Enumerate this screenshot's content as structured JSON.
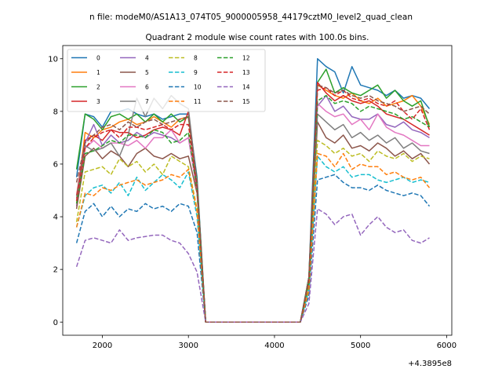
{
  "figure": {
    "suptitle": "n file: modeM0/AS1A13_074T05_9000005958_44179cztM0_level2_quad_clean",
    "title": "Quadrant 2 module wise count rates with 100.0s bins.",
    "x_offset_label": "+4.3895e8"
  },
  "chart_data": {
    "type": "line",
    "title": "Quadrant 2 module wise count rates with 100.0s bins.",
    "xlabel": "",
    "ylabel": "",
    "x_offset": 438950000,
    "xlim": [
      1540,
      6060
    ],
    "ylim": [
      -0.5,
      10.5
    ],
    "xticks": [
      2000,
      3000,
      4000,
      5000,
      6000
    ],
    "yticks": [
      0,
      2,
      4,
      6,
      8,
      10
    ],
    "grid": false,
    "legend": {
      "position": "upper-left",
      "columns": 4
    },
    "x": [
      1700,
      1800,
      1900,
      2000,
      2100,
      2200,
      2300,
      2400,
      2500,
      2600,
      2700,
      2800,
      2900,
      3000,
      3100,
      3200,
      3300,
      3400,
      3500,
      3600,
      3700,
      3800,
      3900,
      4000,
      4100,
      4200,
      4300,
      4400,
      4500,
      4600,
      4700,
      4800,
      4900,
      5000,
      5100,
      5200,
      5300,
      5400,
      5500,
      5600,
      5700,
      5800
    ],
    "series": [
      {
        "name": "0",
        "color": "#1f77b4",
        "dash": "solid",
        "values": [
          5.5,
          7.9,
          7.8,
          7.4,
          8.0,
          8.0,
          8.1,
          7.9,
          7.8,
          7.9,
          7.7,
          7.8,
          7.9,
          7.9,
          5.5,
          0,
          0,
          0,
          0,
          0,
          0,
          0,
          0,
          0,
          0,
          0,
          0,
          1.7,
          10.0,
          9.7,
          9.5,
          8.7,
          9.7,
          9.0,
          8.9,
          8.8,
          8.6,
          8.8,
          8.5,
          8.6,
          8.5,
          8.1
        ]
      },
      {
        "name": "1",
        "color": "#ff7f0e",
        "dash": "solid",
        "values": [
          4.5,
          7.2,
          7.0,
          7.3,
          7.4,
          7.6,
          7.7,
          7.5,
          7.6,
          7.8,
          7.6,
          7.4,
          7.7,
          7.8,
          5.2,
          0,
          0,
          0,
          0,
          0,
          0,
          0,
          0,
          0,
          0,
          0,
          0,
          1.6,
          9.0,
          8.8,
          8.6,
          8.5,
          8.7,
          8.4,
          8.3,
          8.5,
          8.2,
          8.3,
          8.4,
          8.6,
          8.2,
          7.5
        ]
      },
      {
        "name": "2",
        "color": "#2ca02c",
        "dash": "solid",
        "values": [
          5.8,
          7.9,
          7.7,
          7.3,
          7.8,
          7.9,
          7.7,
          7.9,
          7.6,
          7.9,
          7.6,
          7.9,
          7.6,
          7.8,
          5.4,
          0,
          0,
          0,
          0,
          0,
          0,
          0,
          0,
          0,
          0,
          0,
          0,
          1.7,
          9.1,
          9.6,
          8.7,
          8.9,
          8.7,
          8.6,
          8.8,
          9.0,
          8.5,
          8.8,
          8.4,
          8.2,
          8.4,
          7.4
        ]
      },
      {
        "name": "3",
        "color": "#d62728",
        "dash": "solid",
        "values": [
          4.8,
          6.9,
          7.1,
          6.9,
          7.3,
          7.2,
          7.2,
          7.0,
          7.1,
          7.3,
          7.4,
          7.3,
          7.1,
          8.0,
          5.1,
          0,
          0,
          0,
          0,
          0,
          0,
          0,
          0,
          0,
          0,
          0,
          0,
          1.6,
          9.1,
          8.7,
          8.4,
          8.6,
          8.4,
          8.3,
          8.4,
          8.2,
          7.9,
          7.8,
          7.7,
          7.5,
          7.3,
          7.1
        ]
      },
      {
        "name": "4",
        "color": "#9467bd",
        "dash": "solid",
        "values": [
          4.4,
          6.8,
          7.5,
          6.7,
          7.1,
          6.8,
          6.9,
          7.2,
          7.0,
          7.2,
          7.1,
          7.0,
          6.8,
          7.0,
          5.0,
          0,
          0,
          0,
          0,
          0,
          0,
          0,
          0,
          0,
          0,
          0,
          0,
          1.6,
          8.2,
          8.6,
          8.0,
          8.2,
          7.8,
          7.7,
          7.7,
          7.9,
          7.5,
          7.4,
          7.6,
          7.3,
          7.2,
          7.0
        ]
      },
      {
        "name": "5",
        "color": "#8c564b",
        "dash": "solid",
        "values": [
          4.3,
          6.3,
          6.6,
          6.2,
          6.5,
          6.3,
          5.9,
          6.4,
          6.6,
          6.3,
          6.2,
          6.4,
          6.2,
          6.3,
          4.9,
          0,
          0,
          0,
          0,
          0,
          0,
          0,
          0,
          0,
          0,
          0,
          0,
          1.5,
          7.6,
          7.0,
          6.8,
          7.1,
          6.6,
          6.7,
          6.5,
          6.8,
          6.6,
          6.3,
          6.5,
          6.2,
          6.4,
          6.0
        ]
      },
      {
        "name": "6",
        "color": "#e377c2",
        "dash": "solid",
        "values": [
          4.6,
          6.6,
          6.9,
          6.6,
          6.8,
          6.8,
          6.7,
          6.9,
          6.6,
          7.0,
          7.0,
          7.3,
          6.8,
          7.0,
          5.0,
          0,
          0,
          0,
          0,
          0,
          0,
          0,
          0,
          0,
          0,
          0,
          0,
          1.6,
          8.3,
          8.0,
          7.8,
          7.9,
          7.5,
          7.7,
          7.3,
          7.9,
          7.4,
          7.2,
          7.1,
          6.9,
          6.7,
          6.7
        ]
      },
      {
        "name": "7",
        "color": "#7f7f7f",
        "dash": "solid",
        "values": [
          4.7,
          6.7,
          6.5,
          6.6,
          6.8,
          6.3,
          7.1,
          8.5,
          7.8,
          8.5,
          8.1,
          8.6,
          8.3,
          8.1,
          5.3,
          0,
          0,
          0,
          0,
          0,
          0,
          0,
          0,
          0,
          0,
          0,
          0,
          1.6,
          7.9,
          7.6,
          7.3,
          7.5,
          7.0,
          7.2,
          6.9,
          7.1,
          6.8,
          7.0,
          6.6,
          6.8,
          6.5,
          6.4
        ]
      },
      {
        "name": "8",
        "color": "#bcbd22",
        "dash": "dashed",
        "values": [
          3.8,
          5.7,
          5.8,
          5.9,
          5.6,
          6.2,
          5.9,
          6.1,
          5.7,
          6.0,
          5.6,
          6.3,
          6.1,
          5.9,
          4.3,
          0,
          0,
          0,
          0,
          0,
          0,
          0,
          0,
          0,
          0,
          0,
          0,
          1.3,
          6.9,
          6.7,
          6.4,
          6.6,
          6.3,
          6.4,
          6.1,
          6.5,
          6.3,
          6.2,
          6.4,
          6.1,
          6.3,
          6.2
        ]
      },
      {
        "name": "9",
        "color": "#17becf",
        "dash": "dashed",
        "values": [
          3.6,
          4.8,
          5.1,
          5.2,
          4.9,
          5.3,
          4.8,
          5.5,
          5.0,
          5.3,
          5.6,
          5.4,
          5.1,
          5.7,
          4.0,
          0,
          0,
          0,
          0,
          0,
          0,
          0,
          0,
          0,
          0,
          0,
          0,
          1.2,
          6.3,
          5.9,
          5.7,
          5.9,
          5.5,
          5.6,
          5.6,
          5.4,
          5.3,
          5.4,
          5.5,
          5.3,
          5.4,
          5.3
        ]
      },
      {
        "name": "10",
        "color": "#1f77b4",
        "dash": "dashed",
        "values": [
          3.0,
          4.2,
          4.5,
          4.0,
          4.4,
          4.0,
          4.3,
          4.2,
          4.5,
          4.3,
          4.4,
          4.2,
          4.5,
          4.4,
          3.4,
          0,
          0,
          0,
          0,
          0,
          0,
          0,
          0,
          0,
          0,
          0,
          0,
          1.0,
          5.4,
          5.5,
          5.6,
          5.3,
          5.1,
          5.1,
          5.0,
          5.2,
          5.0,
          4.9,
          4.8,
          4.9,
          4.8,
          4.4
        ]
      },
      {
        "name": "11",
        "color": "#ff7f0e",
        "dash": "dashed",
        "values": [
          3.6,
          4.9,
          4.8,
          5.1,
          5.0,
          5.2,
          5.3,
          5.4,
          5.2,
          5.3,
          5.4,
          5.6,
          5.5,
          5.8,
          4.2,
          0,
          0,
          0,
          0,
          0,
          0,
          0,
          0,
          0,
          0,
          0,
          0,
          1.2,
          6.4,
          6.3,
          5.9,
          6.4,
          5.8,
          6.0,
          5.9,
          5.9,
          5.6,
          5.7,
          5.5,
          5.4,
          5.5,
          5.1
        ]
      },
      {
        "name": "12",
        "color": "#2ca02c",
        "dash": "dashed",
        "values": [
          4.5,
          6.4,
          6.5,
          6.7,
          6.9,
          6.8,
          7.1,
          7.1,
          7.0,
          7.3,
          7.2,
          6.8,
          6.9,
          7.2,
          5.0,
          0,
          0,
          0,
          0,
          0,
          0,
          0,
          0,
          0,
          0,
          0,
          0,
          1.5,
          8.4,
          8.6,
          8.3,
          8.4,
          8.3,
          8.0,
          8.2,
          8.1,
          8.0,
          7.9,
          7.7,
          7.8,
          7.6,
          7.4
        ]
      },
      {
        "name": "13",
        "color": "#d62728",
        "dash": "dashed",
        "values": [
          4.6,
          6.6,
          7.0,
          7.2,
          7.3,
          7.0,
          7.4,
          7.4,
          7.3,
          7.4,
          7.5,
          7.3,
          7.5,
          7.5,
          5.1,
          0,
          0,
          0,
          0,
          0,
          0,
          0,
          0,
          0,
          0,
          0,
          0,
          1.6,
          8.8,
          8.9,
          8.6,
          8.8,
          8.5,
          8.4,
          8.5,
          8.3,
          8.2,
          8.4,
          8.0,
          7.7,
          8.1,
          7.3
        ]
      },
      {
        "name": "14",
        "color": "#9467bd",
        "dash": "dashed",
        "values": [
          2.1,
          3.1,
          3.2,
          3.1,
          3.0,
          3.5,
          3.1,
          3.2,
          3.25,
          3.3,
          3.3,
          3.1,
          3.0,
          2.6,
          1.9,
          0,
          0,
          0,
          0,
          0,
          0,
          0,
          0,
          0,
          0,
          0,
          0,
          0.7,
          4.3,
          4.1,
          3.7,
          4.0,
          4.1,
          3.3,
          3.7,
          4.0,
          3.6,
          3.4,
          3.5,
          3.1,
          3.0,
          3.2
        ]
      },
      {
        "name": "15",
        "color": "#8c564b",
        "dash": "dashed",
        "values": [
          5.3,
          6.8,
          7.1,
          7.4,
          7.5,
          7.3,
          7.6,
          7.4,
          7.6,
          7.7,
          7.5,
          7.6,
          7.7,
          7.8,
          5.3,
          0,
          0,
          0,
          0,
          0,
          0,
          0,
          0,
          0,
          0,
          0,
          0,
          1.7,
          9.0,
          8.9,
          8.7,
          8.8,
          8.6,
          8.5,
          8.6,
          8.4,
          8.3,
          8.2,
          8.0,
          8.1,
          8.2,
          7.9
        ]
      }
    ]
  }
}
